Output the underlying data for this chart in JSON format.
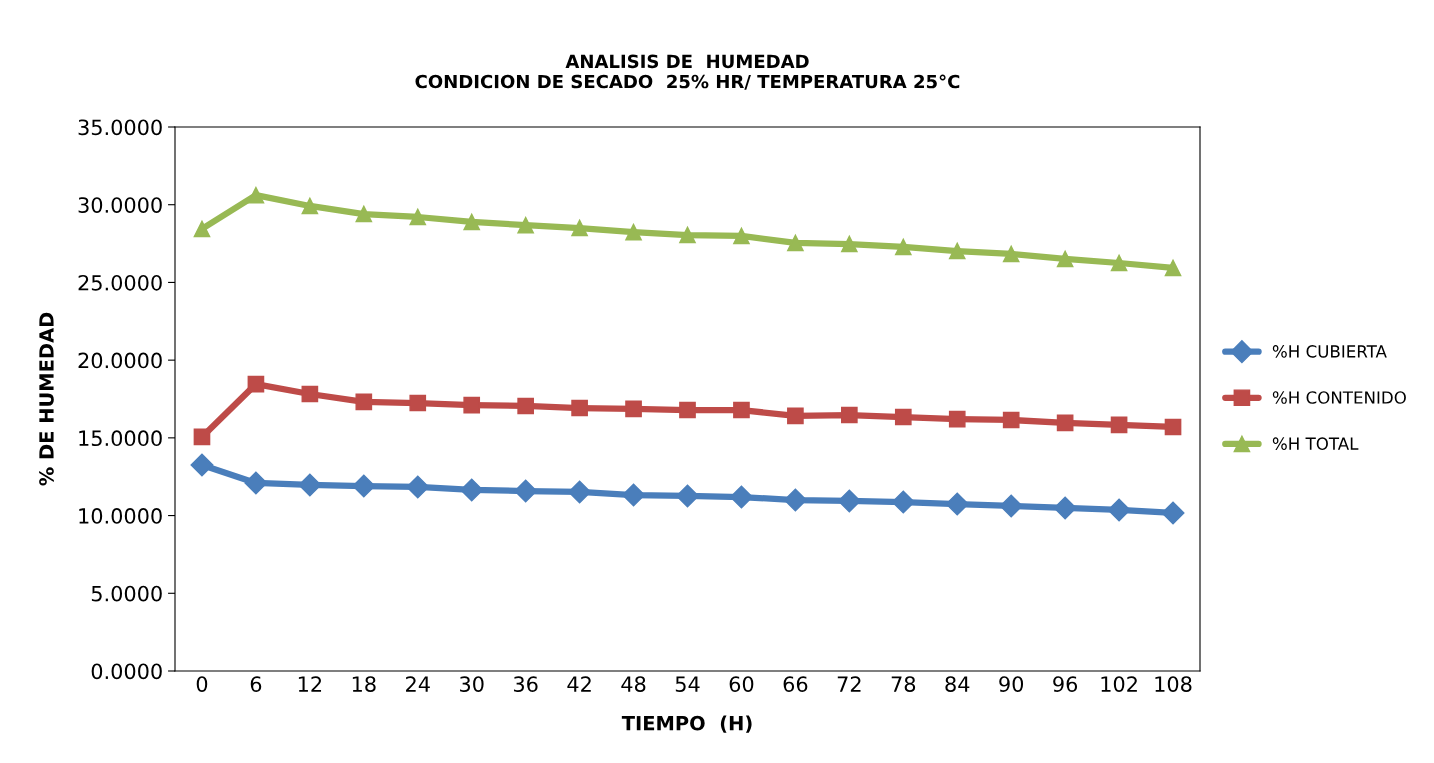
{
  "chart_data": {
    "type": "line",
    "title": "ANALISIS DE  HUMEDAD\nCONDICION DE SECADO  25% HR/ TEMPERATURA 25°C",
    "xlabel": "TIEMPO  (H)",
    "ylabel": "% DE HUMEDAD",
    "categories": [
      "0",
      "6",
      "12",
      "18",
      "24",
      "30",
      "36",
      "42",
      "48",
      "54",
      "60",
      "66",
      "72",
      "78",
      "84",
      "90",
      "96",
      "102",
      "108"
    ],
    "series": [
      {
        "name": "%H CUBIERTA",
        "color": "#4a7ebb",
        "marker": "diamond",
        "values": [
          13.25,
          12.1,
          11.97,
          11.9,
          11.84,
          11.65,
          11.58,
          11.52,
          11.32,
          11.26,
          11.19,
          11.0,
          10.94,
          10.87,
          10.74,
          10.62,
          10.49,
          10.36,
          10.17
        ]
      },
      {
        "name": "%H CONTENIDO",
        "color": "#be4b48",
        "marker": "square",
        "values": [
          15.06,
          18.46,
          17.82,
          17.31,
          17.24,
          17.11,
          17.05,
          16.92,
          16.86,
          16.79,
          16.79,
          16.41,
          16.47,
          16.34,
          16.21,
          16.15,
          15.96,
          15.83,
          15.7
        ]
      },
      {
        "name": "%H TOTAL",
        "color": "#98b954",
        "marker": "triangle",
        "values": [
          28.44,
          30.62,
          29.92,
          29.4,
          29.21,
          28.89,
          28.69,
          28.5,
          28.24,
          28.05,
          27.99,
          27.54,
          27.47,
          27.28,
          27.02,
          26.83,
          26.51,
          26.25,
          25.93
        ]
      }
    ],
    "ylim": [
      0,
      35
    ],
    "yticks": [
      {
        "value": 0,
        "label": "0.0000"
      },
      {
        "value": 5,
        "label": "5.0000"
      },
      {
        "value": 10,
        "label": "10.0000"
      },
      {
        "value": 15,
        "label": "15.0000"
      },
      {
        "value": 20,
        "label": "20.0000"
      },
      {
        "value": 25,
        "label": "25.0000"
      },
      {
        "value": 30,
        "label": "30.0000"
      },
      {
        "value": 35,
        "label": "35.0000"
      }
    ],
    "legend": "right",
    "grid": false,
    "line_style": "solid"
  }
}
